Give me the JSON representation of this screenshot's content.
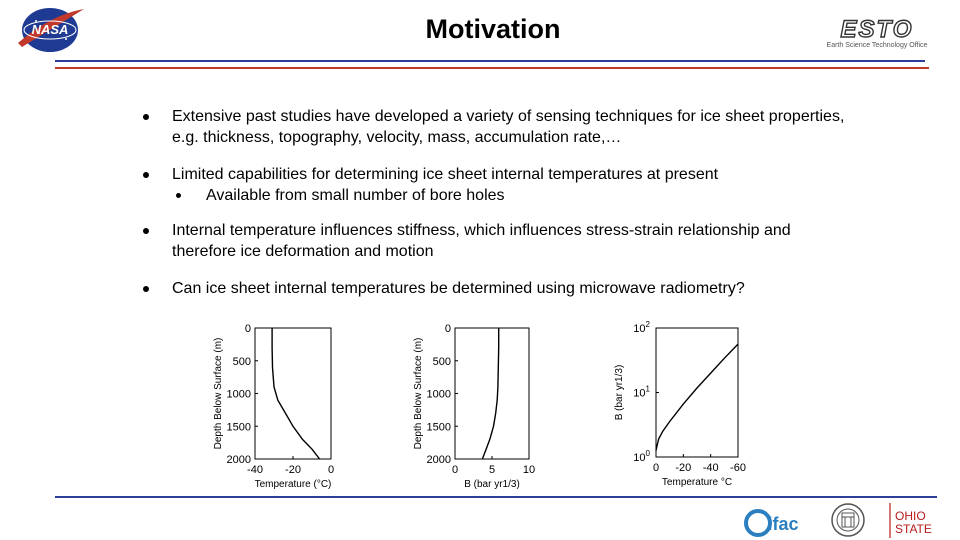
{
  "header": {
    "title": "Motivation"
  },
  "logos": {
    "nasa": "NASA",
    "esto": {
      "name": "ESTO",
      "tagline": "Earth Science Technology Office"
    },
    "ifac": "ifac",
    "ohio": [
      "OHIO",
      "STATE"
    ]
  },
  "colors": {
    "blue": "#2b3f9a",
    "red": "#c0392b"
  },
  "bullets": [
    {
      "text": "Extensive past studies have developed a variety of sensing techniques for ice sheet properties, e.g. thickness, topography, velocity, mass, accumulation rate,…"
    },
    {
      "text": "Limited capabilities for determining ice sheet internal temperatures at present",
      "sub": "Available from small number of bore holes"
    },
    {
      "text": "Internal temperature influences stiffness, which influences stress-strain relationship and therefore ice deformation and motion"
    },
    {
      "text": "Can ice sheet internal temperatures be determined using microwave radiometry?"
    }
  ],
  "chart_data": [
    {
      "type": "line",
      "xlabel": "Temperature (°C)",
      "ylabel": "Depth Below Surface (m)",
      "xticks": [
        "-40",
        "-20",
        "0"
      ],
      "yticks": [
        "0",
        "500",
        "1000",
        "1500",
        "2000"
      ],
      "xlim": [
        -40,
        0
      ],
      "ylim": [
        0,
        2000
      ],
      "x": [
        -31,
        -31,
        -30.8,
        -30,
        -28,
        -24,
        -20,
        -15,
        -10,
        -6
      ],
      "y": [
        0,
        300,
        600,
        900,
        1100,
        1300,
        1500,
        1700,
        1850,
        2000
      ]
    },
    {
      "type": "line",
      "xlabel": "B (bar yr1/3)",
      "ylabel": "Depth Below Surface (m)",
      "xticks": [
        "0",
        "5",
        "10"
      ],
      "yticks": [
        "0",
        "500",
        "1000",
        "1500",
        "2000"
      ],
      "xlim": [
        0,
        10
      ],
      "ylim": [
        0,
        2000
      ],
      "x": [
        5.9,
        5.9,
        5.85,
        5.8,
        5.7,
        5.5,
        5.2,
        4.7,
        4.2,
        3.7
      ],
      "y": [
        0,
        300,
        600,
        900,
        1100,
        1300,
        1500,
        1700,
        1850,
        2000
      ]
    },
    {
      "type": "line",
      "xlabel": "Temperature °C",
      "ylabel": "B (bar yr1/3)",
      "xticks": [
        "0",
        "-20",
        "-40",
        "-60"
      ],
      "yticks": [
        "10^0",
        "10^1",
        "10^2"
      ],
      "xlim": [
        0,
        -60
      ],
      "ylim_log10": [
        0,
        2
      ],
      "log_y": true,
      "x": [
        0,
        -1,
        -2,
        -5,
        -10,
        -20,
        -30,
        -40,
        -50,
        -60
      ],
      "log10_y": [
        0.1,
        0.2,
        0.28,
        0.4,
        0.55,
        0.82,
        1.07,
        1.3,
        1.53,
        1.75
      ]
    }
  ]
}
